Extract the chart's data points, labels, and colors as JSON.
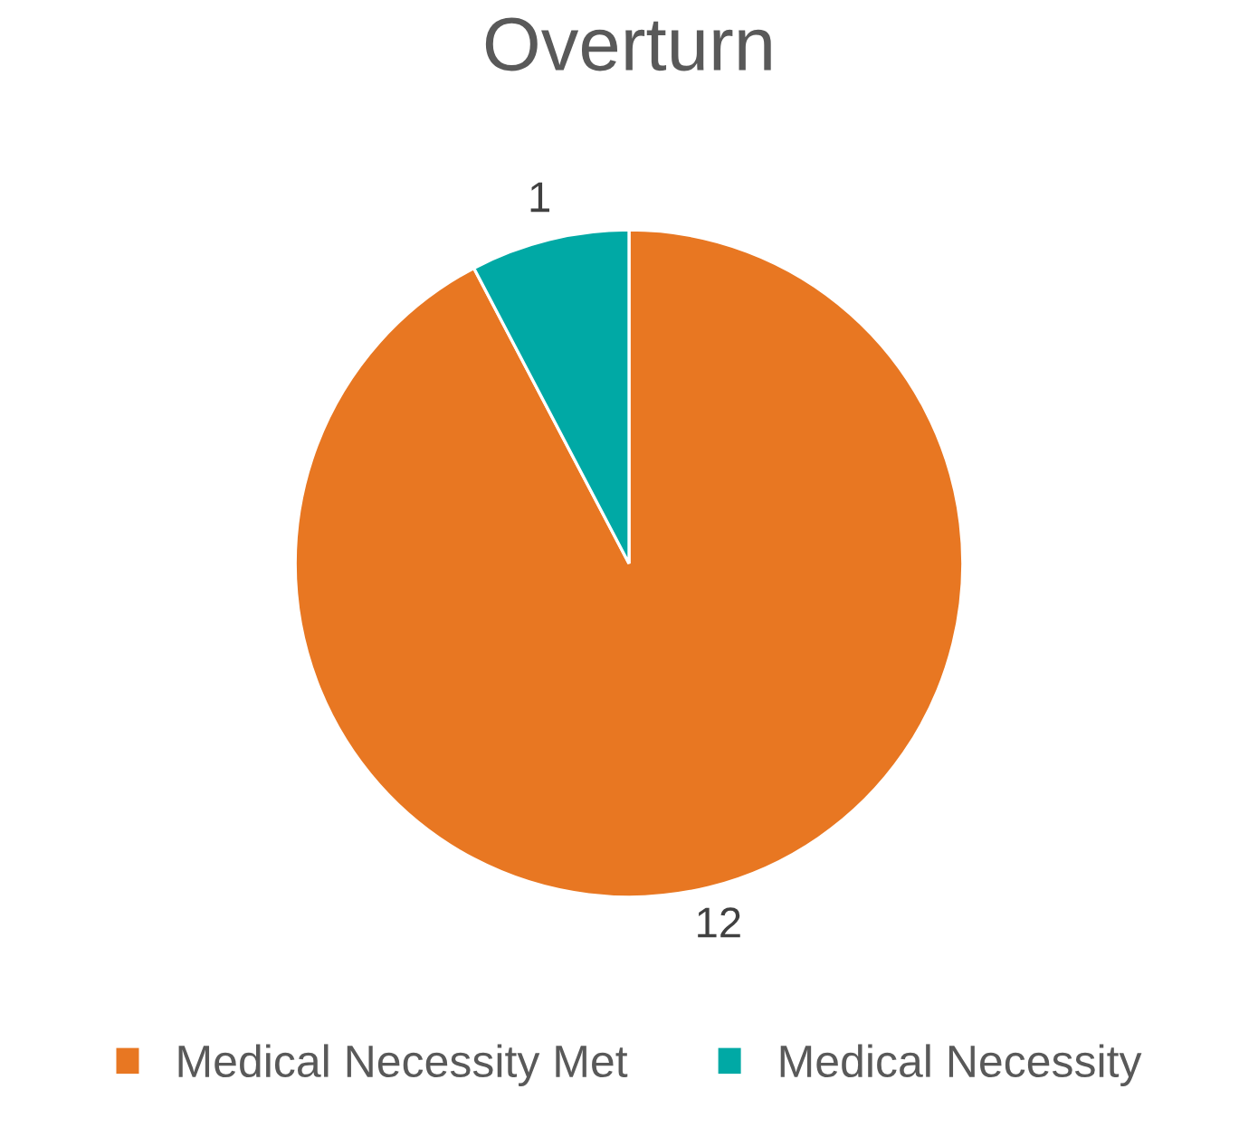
{
  "chart_data": {
    "type": "pie",
    "title": "Overturn",
    "categories": [
      "Medical Necessity Met",
      "Medical Necessity"
    ],
    "values": [
      12,
      1
    ],
    "colors": [
      "#e87722",
      "#00a9a5"
    ],
    "data_labels": true,
    "legend": "bottom"
  }
}
